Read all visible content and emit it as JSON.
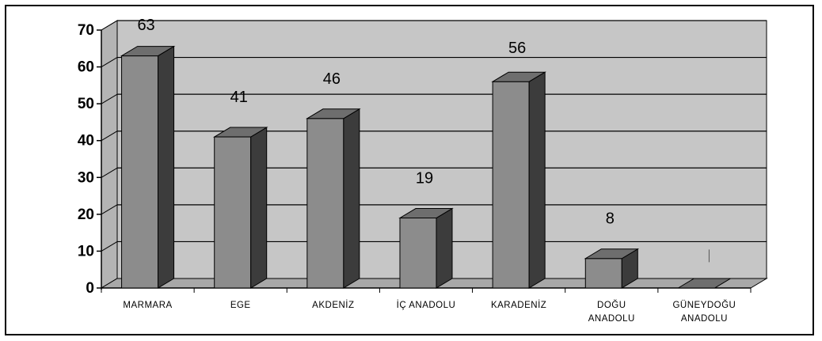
{
  "chart_data": {
    "type": "bar",
    "categories": [
      [
        "MARMARA"
      ],
      [
        "EGE"
      ],
      [
        "AKDENİZ"
      ],
      [
        "İÇ ANADOLU"
      ],
      [
        "KARADENİZ"
      ],
      [
        "DOĞU",
        "ANADOLU"
      ],
      [
        "GÜNEYDOĞU",
        "ANADOLU"
      ]
    ],
    "values": [
      63,
      41,
      46,
      19,
      56,
      8,
      0
    ],
    "data_labels": [
      "63",
      "41",
      "46",
      "19",
      "56",
      "8",
      ""
    ],
    "yticks": [
      0,
      10,
      20,
      30,
      40,
      50,
      60,
      70
    ],
    "ylim": [
      0,
      70
    ],
    "title": "",
    "xlabel": "",
    "ylabel": "",
    "grid": true,
    "legend": "none",
    "style": "3d-column",
    "colors": {
      "wall": "#c6c6c6",
      "floor": "#a8a8a8",
      "bar_front": "#8c8c8c",
      "bar_top": "#6e6e6e",
      "bar_side": "#3c3c3c",
      "grid": "#000000",
      "text": "#000000"
    }
  }
}
